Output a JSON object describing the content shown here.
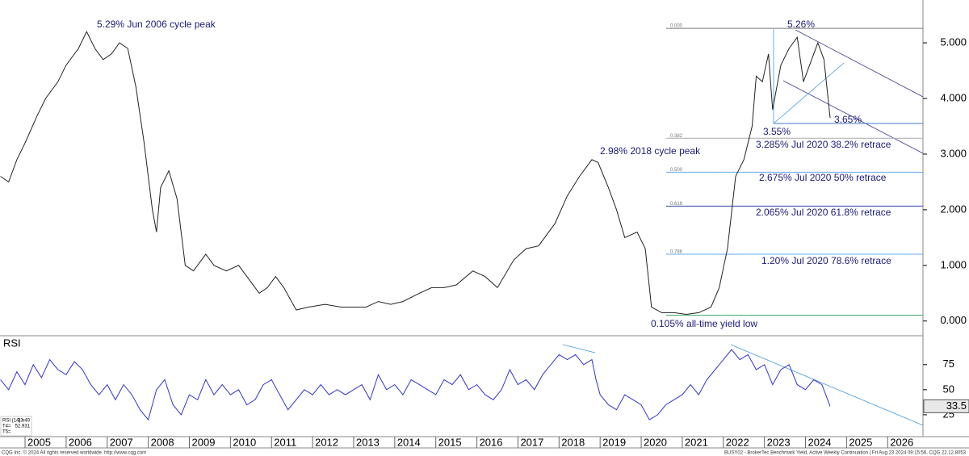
{
  "chart_data": [
    {
      "type": "line",
      "color": "#222222",
      "x": [
        2004.4,
        2004.6,
        2004.8,
        2005.0,
        2005.3,
        2005.5,
        2005.8,
        2006.0,
        2006.3,
        2006.5,
        2006.7,
        2006.9,
        2007.1,
        2007.3,
        2007.5,
        2007.7,
        2007.9,
        2008.1,
        2008.2,
        2008.3,
        2008.5,
        2008.7,
        2008.9,
        2009.1,
        2009.4,
        2009.6,
        2009.9,
        2010.2,
        2010.4,
        2010.7,
        2010.9,
        2011.1,
        2011.3,
        2011.6,
        2011.9,
        2012.3,
        2012.7,
        2013.0,
        2013.3,
        2013.6,
        2013.9,
        2014.2,
        2014.6,
        2014.9,
        2015.2,
        2015.5,
        2015.9,
        2016.2,
        2016.5,
        2016.9,
        2017.2,
        2017.5,
        2017.9,
        2018.2,
        2018.5,
        2018.8,
        2018.95,
        2019.2,
        2019.4,
        2019.6,
        2019.9,
        2020.1,
        2020.25,
        2020.5,
        2020.8,
        2021.1,
        2021.4,
        2021.7,
        2021.9,
        2022.1,
        2022.3,
        2022.5,
        2022.7,
        2022.8,
        2022.95,
        2023.1,
        2023.2,
        2023.4,
        2023.6,
        2023.8,
        2023.95,
        2024.1,
        2024.3,
        2024.45,
        2024.6
      ],
      "values": [
        2.6,
        2.5,
        2.9,
        3.2,
        3.7,
        4.0,
        4.3,
        4.6,
        4.9,
        5.2,
        4.9,
        4.7,
        4.8,
        5.0,
        4.9,
        4.2,
        3.2,
        2.0,
        1.6,
        2.4,
        2.7,
        2.2,
        1.0,
        0.9,
        1.2,
        1.0,
        0.9,
        1.0,
        0.8,
        0.5,
        0.6,
        0.8,
        0.6,
        0.2,
        0.25,
        0.3,
        0.25,
        0.25,
        0.25,
        0.35,
        0.3,
        0.35,
        0.5,
        0.6,
        0.6,
        0.65,
        0.9,
        0.8,
        0.6,
        1.1,
        1.3,
        1.35,
        1.75,
        2.25,
        2.6,
        2.9,
        2.85,
        2.4,
        2.0,
        1.5,
        1.6,
        1.3,
        0.25,
        0.15,
        0.15,
        0.12,
        0.15,
        0.25,
        0.6,
        1.3,
        2.6,
        2.9,
        3.5,
        4.4,
        4.3,
        4.8,
        3.8,
        4.6,
        4.9,
        5.1,
        4.3,
        4.6,
        5.0,
        4.7,
        3.65
      ],
      "xlim": [
        2004.39,
        2026.86
      ],
      "ylim": [
        -0.25,
        5.77
      ],
      "xticks": [
        2005,
        2006,
        2007,
        2008,
        2009,
        2010,
        2011,
        2012,
        2013,
        2014,
        2015,
        2016,
        2017,
        2018,
        2019,
        2020,
        2021,
        2022,
        2023,
        2024,
        2025,
        2026
      ],
      "yticks": [
        {
          "value": 0,
          "label": "0.000"
        },
        {
          "value": 1,
          "label": "1.000"
        },
        {
          "value": 2,
          "label": "2.000"
        },
        {
          "value": 3,
          "label": "3.000"
        },
        {
          "value": 4,
          "label": "4.000"
        },
        {
          "value": 5,
          "label": "5.000"
        }
      ],
      "fib_levels": [
        {
          "value": 5.26,
          "label": "0.000",
          "color": "#777777"
        },
        {
          "value": 3.285,
          "label": "0.382",
          "color": "#aaaaaa"
        },
        {
          "value": 2.675,
          "label": "0.500",
          "color": "#66aaee"
        },
        {
          "value": 2.065,
          "label": "0.618",
          "color": "#3344aa"
        },
        {
          "value": 1.2,
          "label": "0.786",
          "color": "#66aaee"
        },
        {
          "value": 0.105,
          "color": "#44aa66"
        }
      ],
      "annotations": [
        "5.29% Jun 2006 cycle peak",
        "5.26%",
        "2.98% 2018 cycle peak",
        "3.55%",
        "3.65%",
        "3.285% Jul 2020 38.2% retrace",
        "2.675% Jul 2020 50% retrace",
        "2.065% Jul 2020 61.8% retrace",
        "1.20% Jul 2020 78.6% retrace",
        "0.105% all-time yield low"
      ]
    },
    {
      "type": "line",
      "title": "RSI",
      "color": "#3333cc",
      "x": [
        2004.4,
        2004.6,
        2004.8,
        2005.0,
        2005.2,
        2005.4,
        2005.6,
        2005.8,
        2006.0,
        2006.2,
        2006.4,
        2006.6,
        2006.8,
        2007.0,
        2007.2,
        2007.4,
        2007.6,
        2007.8,
        2008.0,
        2008.2,
        2008.4,
        2008.6,
        2008.8,
        2009.0,
        2009.2,
        2009.4,
        2009.6,
        2009.8,
        2010.0,
        2010.2,
        2010.4,
        2010.6,
        2010.8,
        2011.0,
        2011.2,
        2011.4,
        2011.6,
        2011.8,
        2012.0,
        2012.2,
        2012.4,
        2012.6,
        2012.8,
        2013.0,
        2013.2,
        2013.4,
        2013.6,
        2013.8,
        2014.0,
        2014.2,
        2014.4,
        2014.6,
        2014.8,
        2015.0,
        2015.2,
        2015.4,
        2015.6,
        2015.8,
        2016.0,
        2016.2,
        2016.4,
        2016.6,
        2016.8,
        2017.0,
        2017.2,
        2017.4,
        2017.6,
        2017.8,
        2018.0,
        2018.2,
        2018.4,
        2018.6,
        2018.8,
        2018.9,
        2019.0,
        2019.2,
        2019.4,
        2019.6,
        2019.8,
        2020.0,
        2020.2,
        2020.4,
        2020.6,
        2020.8,
        2021.0,
        2021.2,
        2021.4,
        2021.6,
        2021.8,
        2022.0,
        2022.2,
        2022.4,
        2022.6,
        2022.8,
        2023.0,
        2023.2,
        2023.4,
        2023.6,
        2023.8,
        2024.0,
        2024.2,
        2024.4,
        2024.6
      ],
      "values": [
        60,
        50,
        68,
        55,
        75,
        62,
        80,
        70,
        65,
        78,
        70,
        55,
        45,
        55,
        40,
        55,
        45,
        30,
        20,
        50,
        60,
        35,
        25,
        45,
        40,
        60,
        45,
        55,
        45,
        50,
        35,
        40,
        55,
        60,
        45,
        30,
        40,
        50,
        45,
        55,
        45,
        50,
        45,
        50,
        55,
        40,
        65,
        50,
        55,
        45,
        60,
        55,
        50,
        45,
        60,
        55,
        65,
        50,
        55,
        45,
        40,
        50,
        70,
        55,
        60,
        50,
        65,
        75,
        85,
        80,
        85,
        75,
        80,
        60,
        45,
        35,
        30,
        45,
        40,
        35,
        20,
        25,
        35,
        40,
        45,
        55,
        45,
        60,
        70,
        80,
        90,
        80,
        85,
        70,
        75,
        55,
        70,
        75,
        55,
        50,
        60,
        55,
        33.49
      ],
      "ylim": [
        4,
        103
      ],
      "yticks": [
        25,
        50,
        75
      ],
      "current_value": 33.5,
      "legend_rows": [
        {
          "label": "RSI (14) =",
          "value": 33.49
        },
        {
          "label": "T4=",
          "value": 52.931
        },
        {
          "label": "T5="
        }
      ]
    },
    {
      "type": "footer",
      "left": "CQG Inc. © 2024 All rights reserved worldwide. http://www.cqg.com",
      "right": "BUSY02 - BrokerTec Benchmark Yield, Active Weekly Continuation | Fri Aug 23 2024 09:15:56, CQG 22.12.8053"
    }
  ]
}
